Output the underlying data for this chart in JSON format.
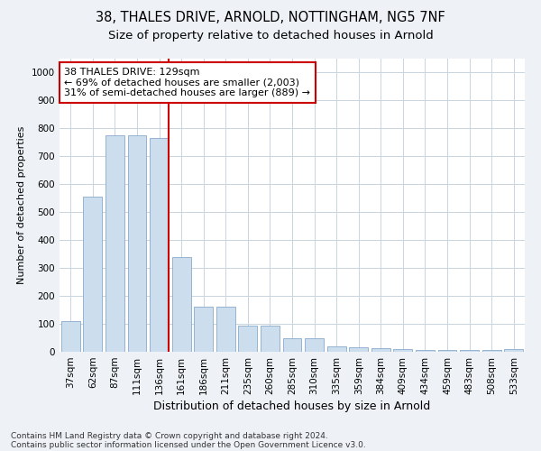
{
  "title1": "38, THALES DRIVE, ARNOLD, NOTTINGHAM, NG5 7NF",
  "title2": "Size of property relative to detached houses in Arnold",
  "xlabel": "Distribution of detached houses by size in Arnold",
  "ylabel": "Number of detached properties",
  "categories": [
    "37sqm",
    "62sqm",
    "87sqm",
    "111sqm",
    "136sqm",
    "161sqm",
    "186sqm",
    "211sqm",
    "235sqm",
    "260sqm",
    "285sqm",
    "310sqm",
    "335sqm",
    "359sqm",
    "384sqm",
    "409sqm",
    "434sqm",
    "459sqm",
    "483sqm",
    "508sqm",
    "533sqm"
  ],
  "values": [
    110,
    555,
    775,
    775,
    765,
    340,
    160,
    160,
    95,
    95,
    50,
    50,
    20,
    15,
    12,
    10,
    5,
    5,
    5,
    5,
    10
  ],
  "bar_color": "#ccdded",
  "bar_edge_color": "#88aacc",
  "vline_x_index": 4,
  "vline_color": "#cc0000",
  "annotation_text": "38 THALES DRIVE: 129sqm\n← 69% of detached houses are smaller (2,003)\n31% of semi-detached houses are larger (889) →",
  "annotation_box_color": "#ffffff",
  "annotation_box_edge": "#cc0000",
  "ylim": [
    0,
    1050
  ],
  "yticks": [
    0,
    100,
    200,
    300,
    400,
    500,
    600,
    700,
    800,
    900,
    1000
  ],
  "footer1": "Contains HM Land Registry data © Crown copyright and database right 2024.",
  "footer2": "Contains public sector information licensed under the Open Government Licence v3.0.",
  "bg_color": "#eef2f7",
  "plot_bg_color": "#ffffff",
  "grid_color": "#c8d4de",
  "title1_fontsize": 10.5,
  "title2_fontsize": 9.5,
  "xlabel_fontsize": 9,
  "ylabel_fontsize": 8,
  "tick_fontsize": 7.5,
  "annotation_fontsize": 8,
  "footer_fontsize": 6.5
}
